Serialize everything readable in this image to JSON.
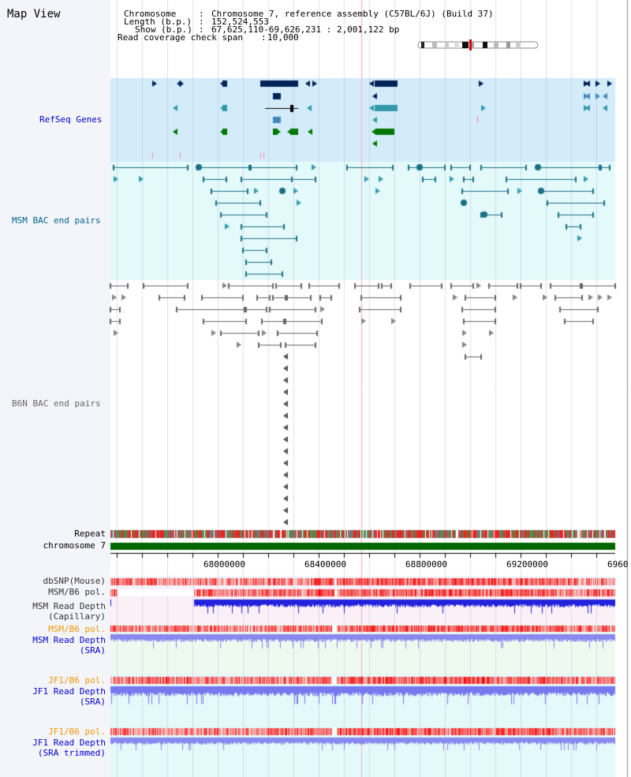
{
  "title": "Map View",
  "header": {
    "chromosome_key": "Chromosome",
    "chromosome_val": "Chromosome 7, reference assembly (C57BL/6J) (Build 37)",
    "length_key": "Length (b.p.)",
    "length_val": "152,524,553",
    "show_key": "Show (b.p.)",
    "show_val": "67,625,110-69,626,231 : 2,001,122 bp",
    "span_key": "Read coverage check span",
    "span_val": "10,000"
  },
  "tracks": {
    "refseq": "RefSeq Genes",
    "msm_bac": "MSM BAC end pairs",
    "b6n_bac": "B6N BAC end pairs",
    "repeat": "Repeat",
    "chromosome": "chromosome 7",
    "dbsnp": "dbSNP(Mouse)",
    "msm_b6_pol_1": "MSM/B6 pol.",
    "msm_read_depth_cap_1": "MSM Read Depth",
    "msm_read_depth_cap_2": "(Capillary)",
    "msm_b6_pol_2": "MSM/B6 pol.",
    "msm_read_depth_sra_1": "MSM Read Depth",
    "msm_read_depth_sra_2": "(SRA)",
    "jf1_b6_pol_1": "JF1/B6 pol.",
    "jf1_read_depth_sra_1": "JF1 Read Depth",
    "jf1_read_depth_sra_2": "(SRA)",
    "jf1_b6_pol_2": "JF1/B6 pol.",
    "jf1_read_depth_trim_1": "JF1 Read Depth",
    "jf1_read_depth_trim_2": "(SRA trimmed)"
  },
  "axis_ticks": [
    "68000000",
    "68400000",
    "68800000",
    "69200000",
    "6960"
  ],
  "colors": {
    "refseq_bg": "#d4ecfa",
    "msm_bg": "#e4f9fa",
    "b6n_bg": "#f4f4fb",
    "refseq_label": "#0000cc",
    "msm_label": "#006688",
    "b6n_label": "#666666",
    "orange_label": "#ee9900",
    "blue_label": "#0000cc",
    "chrom_green": "#006600",
    "dark_navy": "#002255",
    "mid_blue": "#4488bb",
    "teal": "#006688",
    "gray": "#666666"
  }
}
